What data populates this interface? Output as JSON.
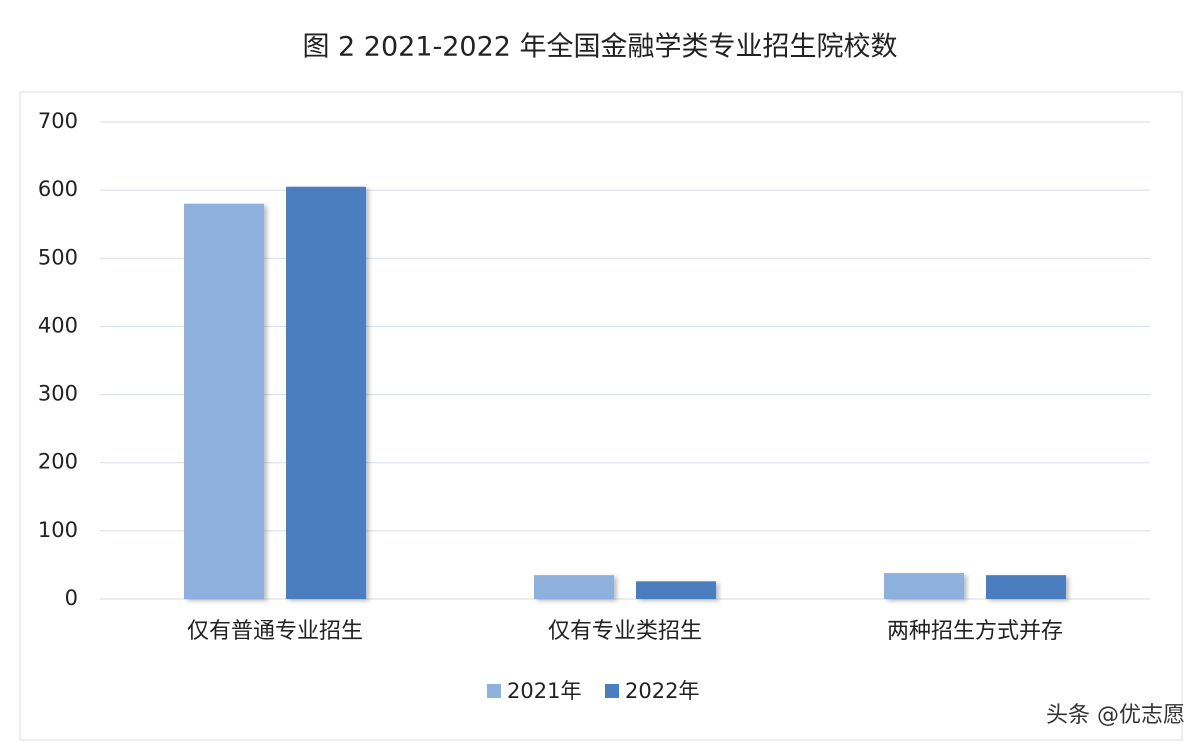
{
  "chart_data": {
    "type": "bar",
    "title": "图 2 2021-2022 年全国金融学类专业招生院校数",
    "categories": [
      "仅有普通专业招生",
      "仅有专业类招生",
      "两种招生方式并存"
    ],
    "series": [
      {
        "name": "2021年",
        "color": "#8eb0dc",
        "values": [
          580,
          35,
          38
        ]
      },
      {
        "name": "2022年",
        "color": "#4a7ebf",
        "values": [
          605,
          26,
          35
        ]
      }
    ],
    "ylim": [
      0,
      700
    ],
    "yticks": [
      0,
      100,
      200,
      300,
      400,
      500,
      600,
      700
    ],
    "grid": true,
    "legend": "bottom",
    "credit": "头条 @优志愿"
  }
}
